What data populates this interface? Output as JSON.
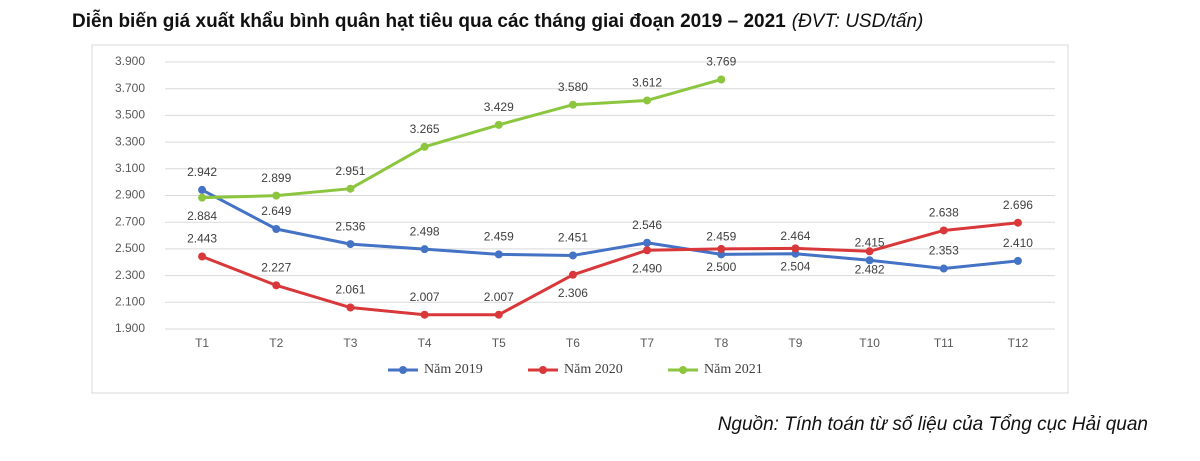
{
  "chart_data": {
    "type": "line",
    "title": "Diễn biến giá xuất khẩu bình quân hạt tiêu qua các tháng giai đoạn 2019 – 2021",
    "unit": "(ĐVT: USD/tấn)",
    "source": "Nguồn: Tính toán từ số liệu của Tổng cục Hải quan",
    "categories": [
      "T1",
      "T2",
      "T3",
      "T4",
      "T5",
      "T6",
      "T7",
      "T8",
      "T9",
      "T10",
      "T11",
      "T12"
    ],
    "ylim": [
      1900,
      3900
    ],
    "yticks": [
      {
        "value": 1900,
        "label": "1.900"
      },
      {
        "value": 2100,
        "label": "2.100"
      },
      {
        "value": 2300,
        "label": "2.300"
      },
      {
        "value": 2500,
        "label": "2.500"
      },
      {
        "value": 2700,
        "label": "2.700"
      },
      {
        "value": 2900,
        "label": "2.900"
      },
      {
        "value": 3100,
        "label": "3.100"
      },
      {
        "value": 3300,
        "label": "3.300"
      },
      {
        "value": 3500,
        "label": "3.500"
      },
      {
        "value": 3700,
        "label": "3.700"
      },
      {
        "value": 3900,
        "label": "3.900"
      }
    ],
    "grid": true,
    "legend": "bottom",
    "series": [
      {
        "name": "Năm 2019",
        "color": "#4472c4",
        "values": [
          2942,
          2649,
          2536,
          2498,
          2459,
          2451,
          2546,
          2459,
          2464,
          2415,
          2353,
          2410
        ],
        "value_labels": [
          "2.942",
          "2.649",
          "2.536",
          "2.498",
          "2.459",
          "2.451",
          "2.546",
          "2.459",
          "2.464",
          "2.415",
          "2.353",
          "2.410"
        ]
      },
      {
        "name": "Năm 2020",
        "color": "#d9383a",
        "values": [
          2443,
          2227,
          2061,
          2007,
          2007,
          2306,
          2490,
          2500,
          2504,
          2482,
          2638,
          2696
        ],
        "value_labels": [
          "2.443",
          "2.227",
          "2.061",
          "2.007",
          "2.007",
          "2.306",
          "2.490",
          "2.500",
          "2.504",
          "2.482",
          "2.638",
          "2.696"
        ]
      },
      {
        "name": "Năm 2021",
        "color": "#8cc63f",
        "values": [
          2884,
          2899,
          2951,
          3265,
          3429,
          3580,
          3612,
          3769,
          null,
          null,
          null,
          null
        ],
        "value_labels": [
          "2.884",
          "2.899",
          "2.951",
          "3.265",
          "3.429",
          "3.580",
          "3.612",
          "3.769",
          null,
          null,
          null,
          null
        ]
      }
    ]
  }
}
